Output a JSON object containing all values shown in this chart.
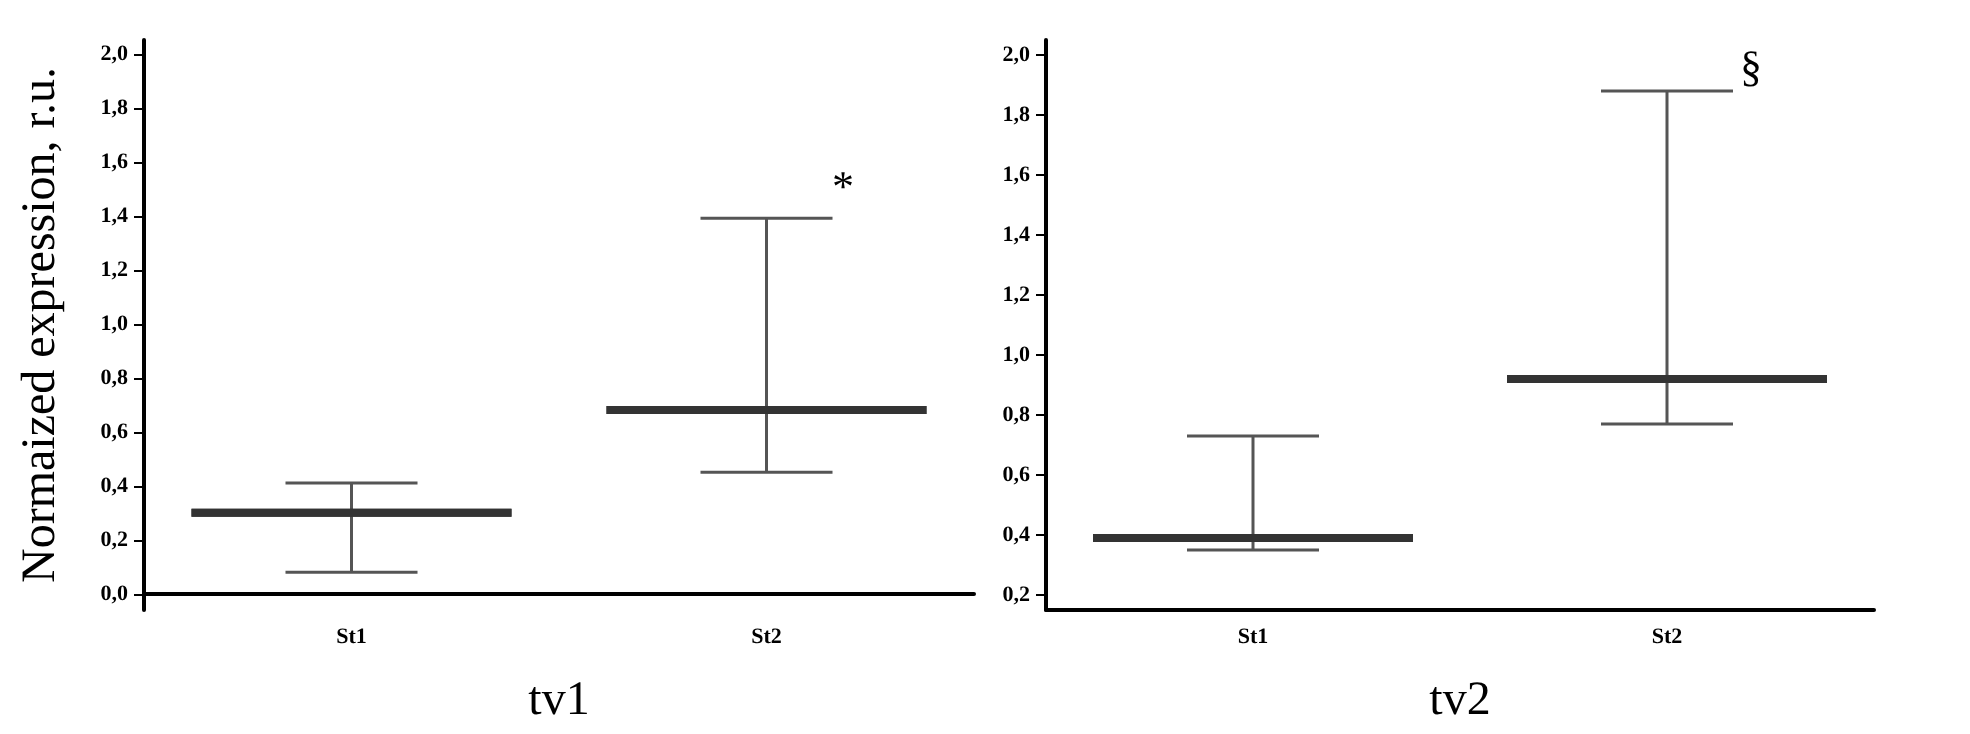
{
  "chart_data": [
    {
      "type": "box",
      "xlabel": "tv1",
      "ylabel": "Normaized expression, r.u.",
      "categories": [
        "St1",
        "St2"
      ],
      "boxes": [
        {
          "low": 0.08,
          "q1": 0.3,
          "median": 0.3,
          "q3": 0.3,
          "high": 0.41
        },
        {
          "low": 0.45,
          "q1": 0.68,
          "median": 0.68,
          "q3": 0.68,
          "high": 1.39
        }
      ],
      "ylim": [
        -0.06,
        2.05
      ],
      "yticks": [
        {
          "value": 0,
          "label": "0,0"
        },
        {
          "value": 0.2,
          "label": "0,2"
        },
        {
          "value": 0.4,
          "label": "0,4"
        },
        {
          "value": 0.6,
          "label": "0,6"
        },
        {
          "value": 0.8,
          "label": "0,8"
        },
        {
          "value": 1.0,
          "label": "1,0"
        },
        {
          "value": 1.2,
          "label": "1,2"
        },
        {
          "value": 1.4,
          "label": "1,4"
        },
        {
          "value": 1.6,
          "label": "1,6"
        },
        {
          "value": 1.8,
          "label": "1,8"
        },
        {
          "value": 2.0,
          "label": "2,0"
        }
      ],
      "annotations": [
        "*"
      ],
      "grid": false
    },
    {
      "type": "box",
      "xlabel": "tv2",
      "categories": [
        "St1",
        "St2"
      ],
      "boxes": [
        {
          "low": 0.35,
          "q1": 0.39,
          "median": 0.39,
          "q3": 0.39,
          "high": 0.73
        },
        {
          "low": 0.77,
          "q1": 0.92,
          "median": 0.92,
          "q3": 0.92,
          "high": 1.88
        }
      ],
      "ylim": [
        0.15,
        2.05
      ],
      "yticks": [
        {
          "value": 0.2,
          "label": "0,2"
        },
        {
          "value": 0.4,
          "label": "0,4"
        },
        {
          "value": 0.6,
          "label": "0,6"
        },
        {
          "value": 0.8,
          "label": "0,8"
        },
        {
          "value": 1.0,
          "label": "1,0"
        },
        {
          "value": 1.2,
          "label": "1,2"
        },
        {
          "value": 1.4,
          "label": "1,4"
        },
        {
          "value": 1.6,
          "label": "1,6"
        },
        {
          "value": 1.8,
          "label": "1,8"
        },
        {
          "value": 2.0,
          "label": "2,0"
        }
      ],
      "annotations": [
        "§"
      ],
      "grid": false
    }
  ]
}
